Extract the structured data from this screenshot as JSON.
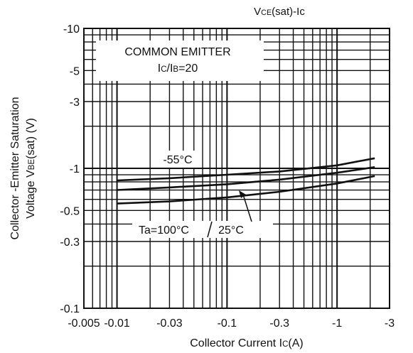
{
  "chart_data": {
    "type": "line",
    "title": {
      "main": "V",
      "sub": "CE",
      "rest": "(sat)-Ic"
    },
    "xlabel": {
      "main": "Collector Current  I",
      "sub": "C",
      "rest": "(A)"
    },
    "ylabel_line1": "Collector -Emitter Saturation",
    "ylabel_line2": {
      "main": "Voltage V",
      "sub": "BE",
      "rest": "(sat) (V)"
    },
    "x_scale": "log",
    "y_scale": "log",
    "xlim": [
      0.005,
      3
    ],
    "ylim": [
      0.1,
      10
    ],
    "x_ticks": [
      {
        "value": 0.005,
        "label": "-0.005"
      },
      {
        "value": 0.01,
        "label": "-0.01"
      },
      {
        "value": 0.03,
        "label": "-0.03"
      },
      {
        "value": 0.1,
        "label": "-0.1"
      },
      {
        "value": 0.3,
        "label": "-0.3"
      },
      {
        "value": 1,
        "label": "-1"
      },
      {
        "value": 3,
        "label": "-3"
      }
    ],
    "y_ticks": [
      {
        "value": 10,
        "label": "-10"
      },
      {
        "value": 5,
        "label": "-5"
      },
      {
        "value": 3,
        "label": "-3"
      },
      {
        "value": 1,
        "label": "-1"
      },
      {
        "value": 0.5,
        "label": "-0.5"
      },
      {
        "value": 0.3,
        "label": "-0.3"
      },
      {
        "value": 0.1,
        "label": "-0.1"
      }
    ],
    "grid": true,
    "annotation_box": {
      "line1": "COMMON EMITTER",
      "line2": {
        "main": "I",
        "sub": "C",
        "mid": "/I",
        "sub2": "B",
        "rest": "=20"
      }
    },
    "series_labels": {
      "low_temp": "-55°C",
      "high_temp": "Ta=100°C",
      "room_temp": "25°C"
    },
    "series": [
      {
        "name": "-55°C",
        "x": [
          0.01,
          0.03,
          0.1,
          0.3,
          1,
          2.2
        ],
        "y": [
          0.82,
          0.85,
          0.9,
          0.95,
          1.05,
          1.18
        ]
      },
      {
        "name": "25°C",
        "x": [
          0.01,
          0.03,
          0.1,
          0.3,
          1,
          2.2
        ],
        "y": [
          0.7,
          0.73,
          0.77,
          0.83,
          0.93,
          1.02
        ]
      },
      {
        "name": "Ta=100°C",
        "x": [
          0.01,
          0.03,
          0.1,
          0.3,
          1,
          2.2
        ],
        "y": [
          0.56,
          0.58,
          0.62,
          0.68,
          0.78,
          0.88
        ]
      }
    ]
  }
}
